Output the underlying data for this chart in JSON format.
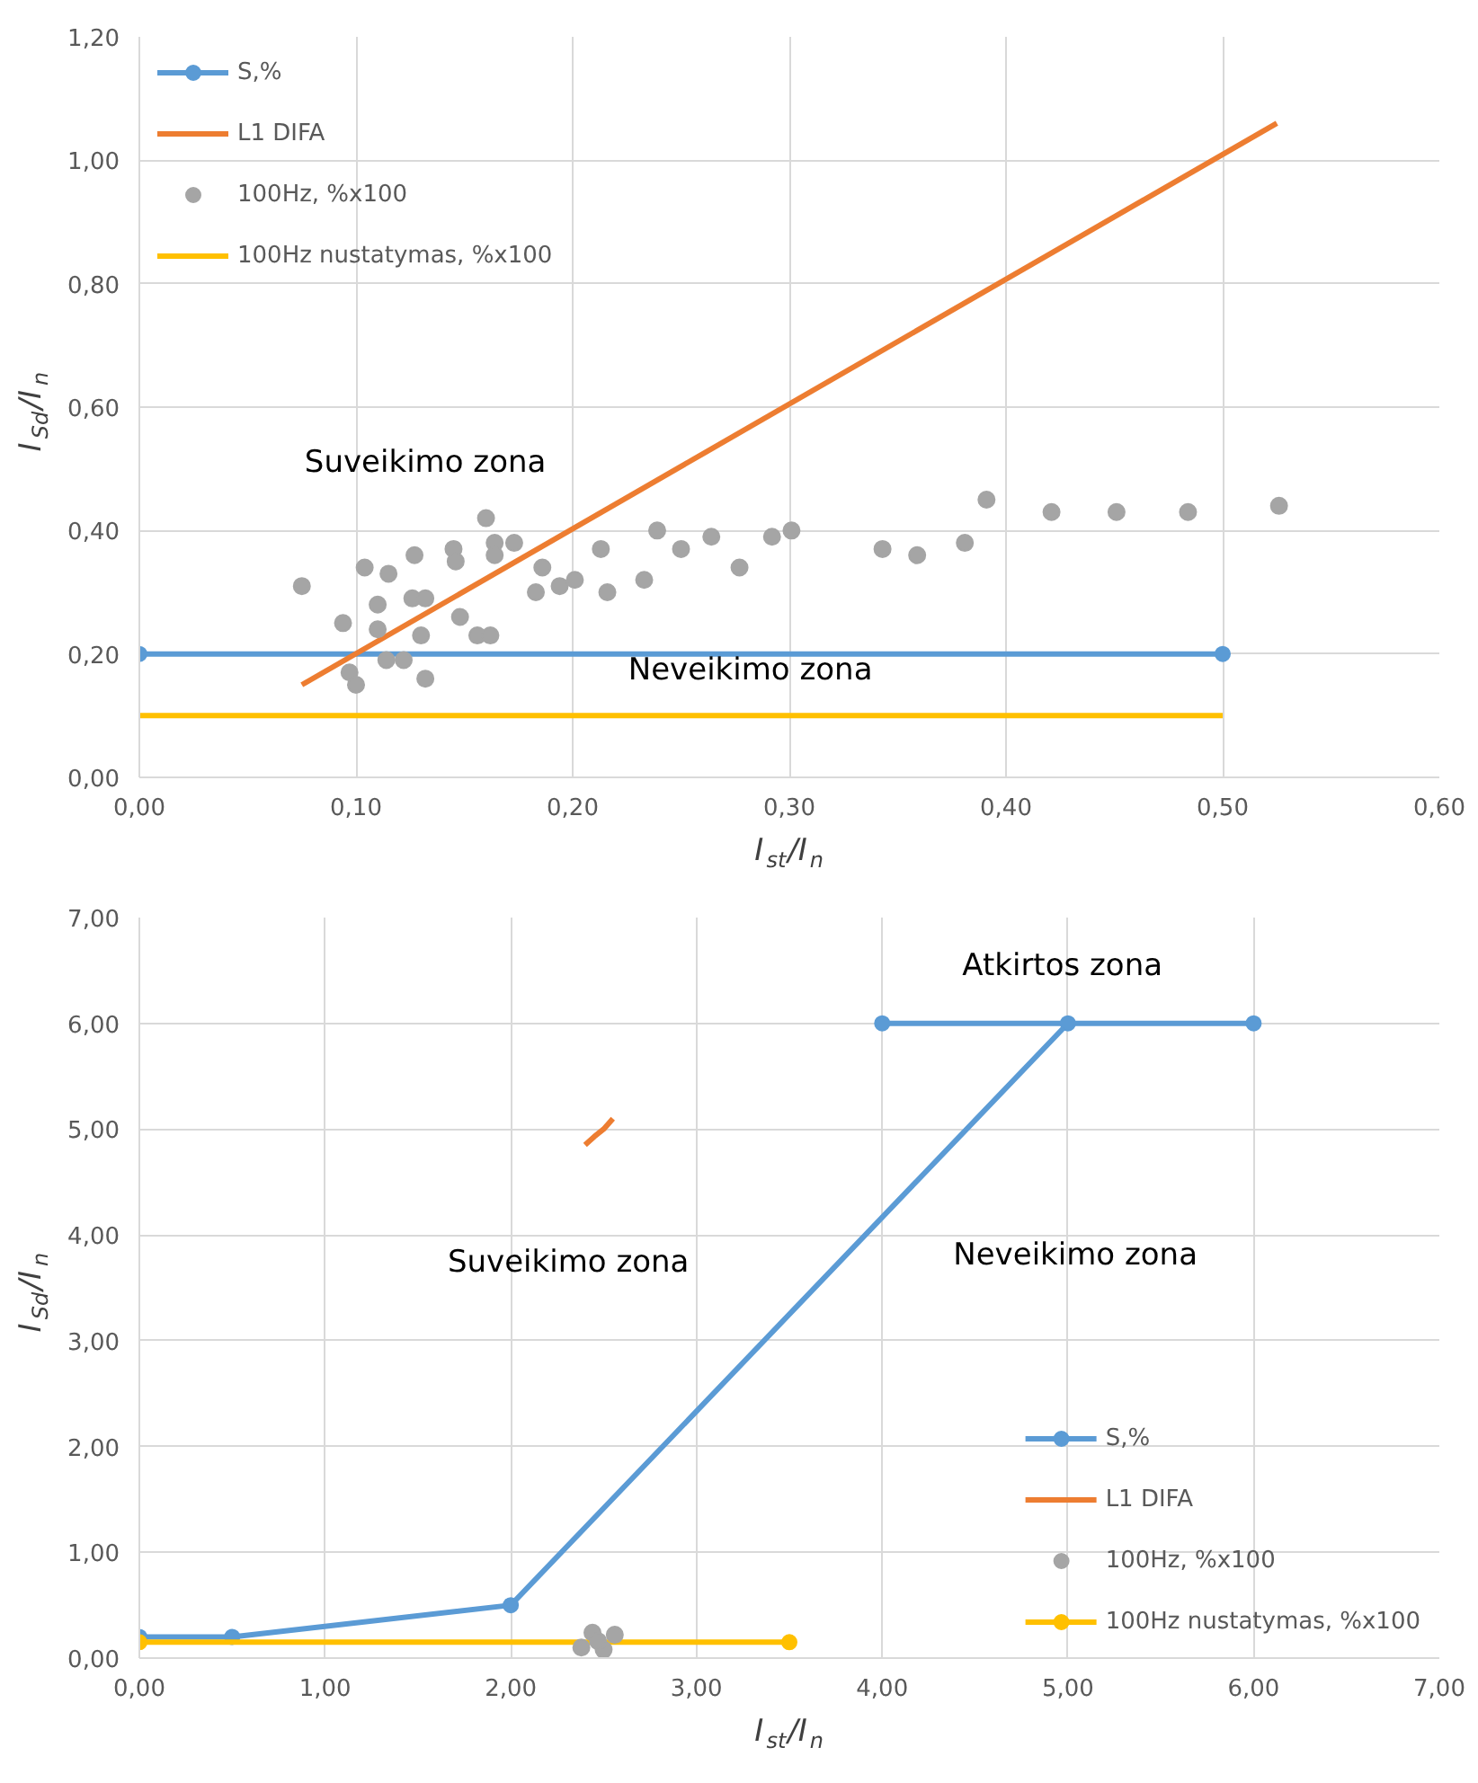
{
  "chart_data": [
    {
      "type": "line",
      "xlabel": "I$_{st}$/I$_{n}$",
      "ylabel": "I$_{Sd}$/I$_{n}$",
      "xlim": [
        0,
        0.6
      ],
      "ylim": [
        0,
        1.2
      ],
      "xticks": [
        {
          "value": 0,
          "label": "0,00"
        },
        {
          "value": 0.1,
          "label": "0,10"
        },
        {
          "value": 0.2,
          "label": "0,20"
        },
        {
          "value": 0.3,
          "label": "0,30"
        },
        {
          "value": 0.4,
          "label": "0,40"
        },
        {
          "value": 0.5,
          "label": "0,50"
        },
        {
          "value": 0.6,
          "label": "0,60"
        }
      ],
      "yticks": [
        {
          "value": 0,
          "label": "0,00"
        },
        {
          "value": 0.2,
          "label": "0,20"
        },
        {
          "value": 0.4,
          "label": "0,40"
        },
        {
          "value": 0.6,
          "label": "0,60"
        },
        {
          "value": 0.8,
          "label": "0,80"
        },
        {
          "value": 1.0,
          "label": "1,00"
        },
        {
          "value": 1.2,
          "label": "1,20"
        }
      ],
      "grid": true,
      "legend": "top left",
      "series": [
        {
          "name": "S,%",
          "color": "#5b9bd5",
          "marker": "circle",
          "x": [
            0,
            0.5
          ],
          "values": [
            0.2,
            0.2
          ]
        },
        {
          "name": "L1 DIFA",
          "color": "#ed7d31",
          "marker": "none",
          "x": [
            0.075,
            0.525
          ],
          "values": [
            0.15,
            1.06
          ]
        },
        {
          "name": "100Hz, %x100",
          "color": "#a5a5a5",
          "type": "scatter",
          "marker": "circle",
          "x": [
            0.075,
            0.094,
            0.097,
            0.1,
            0.104,
            0.11,
            0.11,
            0.115,
            0.114,
            0.122,
            0.127,
            0.126,
            0.132,
            0.13,
            0.132,
            0.145,
            0.146,
            0.148,
            0.156,
            0.162,
            0.16,
            0.164,
            0.164,
            0.173,
            0.186,
            0.183,
            0.194,
            0.201,
            0.213,
            0.216,
            0.233,
            0.239,
            0.25,
            0.264,
            0.277,
            0.292,
            0.301,
            0.343,
            0.359,
            0.381,
            0.391,
            0.421,
            0.451,
            0.484,
            0.526
          ],
          "values": [
            0.31,
            0.25,
            0.17,
            0.15,
            0.34,
            0.28,
            0.24,
            0.33,
            0.19,
            0.19,
            0.36,
            0.29,
            0.29,
            0.23,
            0.16,
            0.37,
            0.35,
            0.26,
            0.23,
            0.23,
            0.42,
            0.38,
            0.36,
            0.38,
            0.34,
            0.3,
            0.31,
            0.32,
            0.37,
            0.3,
            0.32,
            0.4,
            0.37,
            0.39,
            0.34,
            0.39,
            0.4,
            0.37,
            0.36,
            0.38,
            0.45,
            0.43,
            0.43,
            0.43,
            0.44
          ]
        },
        {
          "name": "100Hz nustatymas, %x100",
          "color": "#ffc000",
          "marker": "none",
          "x": [
            0,
            0.5
          ],
          "values": [
            0.1,
            0.1
          ]
        }
      ],
      "annotations": [
        "Suveikimo zona",
        "Neveikimo zona"
      ]
    },
    {
      "type": "line",
      "xlabel": "I$_{st}$/I$_{n}$",
      "ylabel": "I$_{Sd}$/I$_{n}$",
      "xlim": [
        0,
        7
      ],
      "ylim": [
        0,
        7
      ],
      "xticks": [
        {
          "value": 0,
          "label": "0,00"
        },
        {
          "value": 1,
          "label": "1,00"
        },
        {
          "value": 2,
          "label": "2,00"
        },
        {
          "value": 3,
          "label": "3,00"
        },
        {
          "value": 4,
          "label": "4,00"
        },
        {
          "value": 5,
          "label": "5,00"
        },
        {
          "value": 6,
          "label": "6,00"
        },
        {
          "value": 7,
          "label": "7,00"
        }
      ],
      "yticks": [
        {
          "value": 0,
          "label": "0,00"
        },
        {
          "value": 1,
          "label": "1,00"
        },
        {
          "value": 2,
          "label": "2,00"
        },
        {
          "value": 3,
          "label": "3,00"
        },
        {
          "value": 4,
          "label": "4,00"
        },
        {
          "value": 5,
          "label": "5,00"
        },
        {
          "value": 6,
          "label": "6,00"
        },
        {
          "value": 7,
          "label": "7,00"
        }
      ],
      "grid": true,
      "legend": "bottom right",
      "series": [
        {
          "name": "S,%",
          "color": "#5b9bd5",
          "marker": "circle",
          "x": [
            0,
            0.5,
            2,
            5,
            4,
            6
          ],
          "values": [
            0.2,
            0.2,
            0.5,
            6,
            6,
            6
          ]
        },
        {
          "name": "L1 DIFA",
          "color": "#ed7d31",
          "marker": "none",
          "x": [
            2.4,
            2.45,
            2.5,
            2.55
          ],
          "values": [
            4.85,
            4.93,
            5.0,
            5.1
          ]
        },
        {
          "name": "100Hz, %x100",
          "color": "#a5a5a5",
          "type": "scatter",
          "marker": "circle",
          "x": [
            2.38,
            2.44,
            2.5,
            2.56,
            2.47
          ],
          "values": [
            0.1,
            0.24,
            0.08,
            0.22,
            0.16
          ]
        },
        {
          "name": "100Hz nustatymas, %x100",
          "color": "#ffc000",
          "marker": "circle",
          "x": [
            0,
            3.5
          ],
          "values": [
            0.15,
            0.15
          ]
        }
      ],
      "annotations": [
        "Atkirtos zona",
        "Neveikimo zona",
        "Suveikimo zona"
      ]
    }
  ]
}
